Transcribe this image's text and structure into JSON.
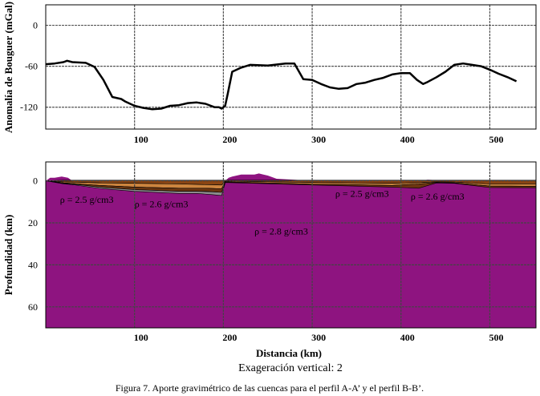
{
  "chart_data": [
    {
      "type": "line",
      "panel": "top",
      "ylabel": "Anomalía de Bouguer (mGal)",
      "ylim": [
        -152,
        30
      ],
      "xlim": [
        0,
        552
      ],
      "yticks": [
        0,
        -60,
        -120
      ],
      "ytick_labels": [
        "0",
        "-60",
        "-120"
      ],
      "xticks": [
        100,
        200,
        300,
        400,
        500
      ],
      "xtick_labels": [
        "100",
        "200",
        "300",
        "400",
        "500"
      ],
      "grid": true,
      "series": [
        {
          "name": "Anomalía de Bouguer",
          "x": [
            0,
            10,
            20,
            24,
            30,
            45,
            55,
            65,
            75,
            85,
            90,
            100,
            110,
            120,
            130,
            140,
            150,
            160,
            170,
            180,
            190,
            195,
            198,
            202,
            205,
            210,
            220,
            230,
            250,
            270,
            280,
            290,
            300,
            310,
            320,
            330,
            340,
            350,
            360,
            370,
            380,
            390,
            400,
            410,
            418,
            425,
            430,
            440,
            450,
            460,
            470,
            480,
            490,
            500,
            510,
            520,
            530
          ],
          "y": [
            -57,
            -56,
            -54,
            -52,
            -54,
            -55,
            -61,
            -80,
            -105,
            -108,
            -112,
            -118,
            -121,
            -123,
            -122,
            -118,
            -117,
            -114,
            -113,
            -115,
            -120,
            -120,
            -122,
            -118,
            -100,
            -68,
            -62,
            -58,
            -59,
            -56,
            -56,
            -79,
            -80,
            -86,
            -91,
            -93,
            -92,
            -86,
            -84,
            -80,
            -77,
            -72,
            -70,
            -70,
            -80,
            -86,
            -83,
            -76,
            -68,
            -58,
            -56,
            -58,
            -60,
            -65,
            -71,
            -76,
            -82
          ]
        }
      ]
    },
    {
      "type": "area",
      "panel": "bottom",
      "ylabel": "Profundidad (km)",
      "xlabel": "Distancia (km)",
      "subtitle": "Exageración vertical: 2",
      "ylim": [
        70,
        -9
      ],
      "xlim": [
        0,
        552
      ],
      "yticks": [
        0,
        20,
        40,
        60
      ],
      "ytick_labels": [
        "0",
        "20",
        "40",
        "60"
      ],
      "xticks": [
        100,
        200,
        300,
        400,
        500
      ],
      "xtick_labels": [
        "100",
        "200",
        "300",
        "400",
        "500"
      ],
      "grid": true,
      "crust_color": "#8e1480",
      "basement_top": {
        "x": [
          0,
          5,
          10,
          18,
          25,
          30,
          45,
          90,
          100,
          150,
          190,
          198,
          202,
          206,
          210,
          215,
          220,
          225,
          230,
          235,
          240,
          245,
          250,
          260,
          300,
          420,
          430,
          460,
          552
        ],
        "y": [
          0,
          -1.5,
          -1.5,
          -2,
          -1.5,
          0,
          0,
          0,
          0,
          0,
          0,
          0,
          0,
          -1.5,
          -2,
          -2.5,
          -3,
          -3,
          -3,
          -3,
          -3.5,
          -3,
          -2.5,
          -1,
          0,
          0,
          -0.5,
          0,
          0
        ]
      },
      "layers": [
        {
          "name": "layer-top",
          "color": "#8b4513",
          "x": [
            0,
            20,
            60,
            100,
            150,
            180,
            198,
            202,
            300,
            340,
            390,
            420,
            440,
            460,
            500,
            552
          ],
          "y_top": [
            0,
            -0.3,
            -0.3,
            -0.3,
            -0.3,
            -0.3,
            -0.3,
            -0.3,
            -0.3,
            -0.3,
            -0.3,
            -0.3,
            -0.3,
            -0.3,
            -0.3,
            -0.3
          ],
          "y_bottom": [
            0,
            0.5,
            1.0,
            1.2,
            1.5,
            1.8,
            2.0,
            0.2,
            0.8,
            1.0,
            1.2,
            0.9,
            0.5,
            0.6,
            1.5,
            1.5
          ]
        },
        {
          "name": "layer-orange",
          "color": "#cd853f",
          "x": [
            0,
            20,
            60,
            100,
            150,
            180,
            198,
            202,
            300,
            340,
            390,
            420,
            440,
            460,
            500,
            552
          ],
          "y_top": [
            0,
            0.5,
            1.0,
            1.2,
            1.5,
            1.8,
            2.0,
            0.2,
            0.8,
            1.0,
            1.2,
            0.9,
            0.5,
            0.6,
            1.5,
            1.5
          ],
          "y_bottom": [
            0,
            1.0,
            2.2,
            3.0,
            3.5,
            3.5,
            3.8,
            0.5,
            1.6,
            1.8,
            2.2,
            1.5,
            0.8,
            1.0,
            2.5,
            2.6
          ]
        },
        {
          "name": "layer-brown",
          "color": "#6b3510",
          "x": [
            0,
            20,
            60,
            100,
            150,
            180,
            198,
            202,
            300,
            340,
            390,
            420,
            440,
            460,
            500,
            552
          ],
          "y_top": [
            0,
            1.0,
            2.2,
            3.0,
            3.5,
            3.5,
            3.8,
            0.5,
            1.6,
            1.8,
            2.2,
            1.5,
            0.8,
            1.0,
            2.5,
            2.6
          ],
          "y_bottom": [
            0,
            1.4,
            3.0,
            4.2,
            5.0,
            5.0,
            5.5,
            0.8,
            2.0,
            2.4,
            3.0,
            3.5,
            1.0,
            1.2,
            3.2,
            3.3
          ]
        },
        {
          "name": "layer-gray",
          "color": "#8c8c8c",
          "x": [
            0,
            60,
            100,
            150,
            170,
            185,
            198,
            202
          ],
          "y_top": [
            0,
            3.0,
            4.2,
            5.0,
            5.0,
            5.2,
            5.5,
            0.8
          ],
          "y_bottom": [
            0,
            3.6,
            5.0,
            6.0,
            6.0,
            6.5,
            7.0,
            1.0
          ]
        }
      ],
      "annotations": [
        {
          "text": "ρ = 2.5 g/cm3",
          "x": 16,
          "y": 9
        },
        {
          "text": "ρ = 2.6 g/cm3",
          "x": 100,
          "y": 11
        },
        {
          "text": "ρ = 2.8 g/cm3",
          "x": 235,
          "y": 24
        },
        {
          "text": "ρ = 2.5 g/cm3",
          "x": 326,
          "y": 6
        },
        {
          "text": "ρ = 2.6 g/cm3",
          "x": 411,
          "y": 7.5
        }
      ]
    }
  ],
  "caption": "Figura 7. Aporte gravimétrico de las cuencas para el perfil A-A’ y el perfil B-B’."
}
